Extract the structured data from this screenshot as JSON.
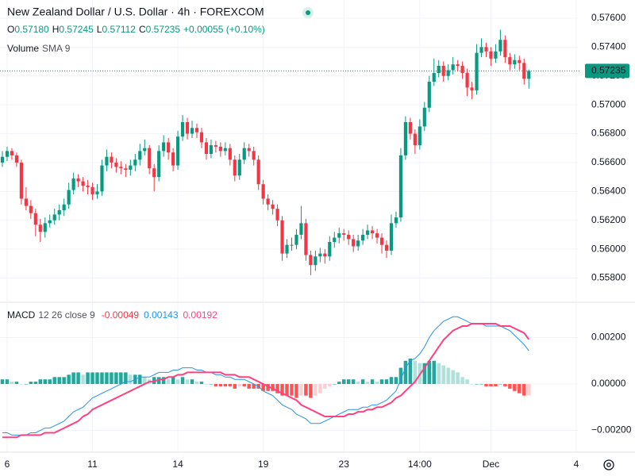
{
  "chart_data": [
    {
      "type": "candlestick",
      "title": "New Zealand Dollar / U.S. Dollar · 4h · FOREXCOM",
      "ohlc_legend": [
        {
          "key": "O",
          "value": "0.57180"
        },
        {
          "key": "H",
          "value": "0.57245"
        },
        {
          "key": "L",
          "value": "0.57112"
        },
        {
          "key": "C",
          "value": "0.57235"
        }
      ],
      "change": "+0.00055 (+0.10%)",
      "volume_legend": {
        "title": "Volume",
        "params": "SMA 9"
      },
      "up_color": "#089981",
      "down_color": "#f23645",
      "xlim": [
        -0.5,
        122
      ],
      "ylim": [
        0.55638,
        0.57726
      ],
      "yticks": [
        {
          "value": 0.558,
          "label": "0.55800"
        },
        {
          "value": 0.56,
          "label": "0.56000"
        },
        {
          "value": 0.562,
          "label": "0.56200"
        },
        {
          "value": 0.564,
          "label": "0.56400"
        },
        {
          "value": 0.566,
          "label": "0.56600"
        },
        {
          "value": 0.568,
          "label": "0.56800"
        },
        {
          "value": 0.57,
          "label": "0.57000"
        },
        {
          "value": 0.572,
          "label": "0.57200"
        },
        {
          "value": 0.574,
          "label": "0.57400"
        },
        {
          "value": 0.576,
          "label": "0.57600"
        }
      ],
      "grid": true,
      "candles": [
        [
          0.566,
          0.5668,
          0.5657,
          0.5664
        ],
        [
          0.5664,
          0.5671,
          0.5661,
          0.5668
        ],
        [
          0.5668,
          0.567,
          0.5662,
          0.5665
        ],
        [
          0.5665,
          0.5667,
          0.5657,
          0.566
        ],
        [
          0.566,
          0.5662,
          0.5631,
          0.5635
        ],
        [
          0.5635,
          0.5643,
          0.5627,
          0.563
        ],
        [
          0.563,
          0.5634,
          0.5621,
          0.5625
        ],
        [
          0.5625,
          0.5628,
          0.5609,
          0.5617
        ],
        [
          0.5617,
          0.5621,
          0.5605,
          0.5612
        ],
        [
          0.5612,
          0.5622,
          0.5608,
          0.5618
        ],
        [
          0.5618,
          0.5624,
          0.5615,
          0.562
        ],
        [
          0.562,
          0.5628,
          0.5617,
          0.5624
        ],
        [
          0.5624,
          0.5631,
          0.562,
          0.5627
        ],
        [
          0.5627,
          0.5635,
          0.5623,
          0.5631
        ],
        [
          0.5631,
          0.5646,
          0.5628,
          0.5641
        ],
        [
          0.5641,
          0.5653,
          0.5638,
          0.5649
        ],
        [
          0.5649,
          0.5652,
          0.5643,
          0.5647
        ],
        [
          0.5647,
          0.565,
          0.564,
          0.5644
        ],
        [
          0.5644,
          0.5648,
          0.5638,
          0.5643
        ],
        [
          0.5643,
          0.5646,
          0.5634,
          0.5638
        ],
        [
          0.5638,
          0.5645,
          0.5635,
          0.564
        ],
        [
          0.564,
          0.5662,
          0.5637,
          0.5658
        ],
        [
          0.5658,
          0.5669,
          0.5654,
          0.5664
        ],
        [
          0.5664,
          0.5667,
          0.5656,
          0.566
        ],
        [
          0.566,
          0.5663,
          0.5653,
          0.5657
        ],
        [
          0.5657,
          0.5661,
          0.5652,
          0.5656
        ],
        [
          0.5656,
          0.5659,
          0.565,
          0.5655
        ],
        [
          0.5655,
          0.5662,
          0.5651,
          0.5658
        ],
        [
          0.5658,
          0.5666,
          0.5654,
          0.5662
        ],
        [
          0.5662,
          0.5673,
          0.5658,
          0.5668
        ],
        [
          0.5668,
          0.5676,
          0.5665,
          0.567
        ],
        [
          0.567,
          0.5672,
          0.5652,
          0.5656
        ],
        [
          0.5656,
          0.5659,
          0.564,
          0.565
        ],
        [
          0.565,
          0.5672,
          0.5647,
          0.5668
        ],
        [
          0.5668,
          0.5679,
          0.5664,
          0.5674
        ],
        [
          0.5674,
          0.5677,
          0.5662,
          0.5667
        ],
        [
          0.5667,
          0.567,
          0.5654,
          0.5658
        ],
        [
          0.5658,
          0.5682,
          0.5655,
          0.5678
        ],
        [
          0.5678,
          0.5693,
          0.5675,
          0.5688
        ],
        [
          0.5688,
          0.5691,
          0.5676,
          0.568
        ],
        [
          0.568,
          0.5689,
          0.5677,
          0.5684
        ],
        [
          0.5684,
          0.5687,
          0.5677,
          0.5681
        ],
        [
          0.5681,
          0.5684,
          0.567,
          0.5674
        ],
        [
          0.5674,
          0.5677,
          0.5662,
          0.5666
        ],
        [
          0.5666,
          0.5676,
          0.5663,
          0.5672
        ],
        [
          0.5672,
          0.5675,
          0.5667,
          0.5671
        ],
        [
          0.5671,
          0.5674,
          0.5664,
          0.5668
        ],
        [
          0.5668,
          0.5674,
          0.5665,
          0.567
        ],
        [
          0.567,
          0.5673,
          0.5658,
          0.5662
        ],
        [
          0.5662,
          0.5665,
          0.5647,
          0.5651
        ],
        [
          0.5651,
          0.5666,
          0.5648,
          0.5662
        ],
        [
          0.5662,
          0.5674,
          0.5659,
          0.567
        ],
        [
          0.567,
          0.5673,
          0.5664,
          0.5668
        ],
        [
          0.5668,
          0.5671,
          0.5658,
          0.5662
        ],
        [
          0.5662,
          0.5665,
          0.5641,
          0.5645
        ],
        [
          0.5645,
          0.5648,
          0.5631,
          0.5635
        ],
        [
          0.5635,
          0.5638,
          0.5627,
          0.5631
        ],
        [
          0.5631,
          0.5634,
          0.5624,
          0.5628
        ],
        [
          0.5628,
          0.5631,
          0.5616,
          0.562
        ],
        [
          0.562,
          0.5623,
          0.5592,
          0.5597
        ],
        [
          0.5597,
          0.5607,
          0.5594,
          0.5603
        ],
        [
          0.5603,
          0.5608,
          0.5599,
          0.5603
        ],
        [
          0.5603,
          0.5614,
          0.56,
          0.561
        ],
        [
          0.561,
          0.563,
          0.5607,
          0.5618
        ],
        [
          0.5618,
          0.5621,
          0.5592,
          0.5596
        ],
        [
          0.5596,
          0.5599,
          0.5582,
          0.5589
        ],
        [
          0.5589,
          0.5599,
          0.5585,
          0.5595
        ],
        [
          0.5595,
          0.5601,
          0.5591,
          0.5597
        ],
        [
          0.5597,
          0.56,
          0.559,
          0.5595
        ],
        [
          0.5595,
          0.5609,
          0.5592,
          0.5605
        ],
        [
          0.5605,
          0.5612,
          0.5601,
          0.5608
        ],
        [
          0.5608,
          0.5615,
          0.5604,
          0.5611
        ],
        [
          0.5611,
          0.5614,
          0.5606,
          0.561
        ],
        [
          0.561,
          0.5613,
          0.5603,
          0.5607
        ],
        [
          0.5607,
          0.561,
          0.5598,
          0.5602
        ],
        [
          0.5602,
          0.561,
          0.5599,
          0.5606
        ],
        [
          0.5606,
          0.5614,
          0.5603,
          0.561
        ],
        [
          0.561,
          0.5617,
          0.5607,
          0.5613
        ],
        [
          0.5613,
          0.5616,
          0.5607,
          0.5611
        ],
        [
          0.5611,
          0.5614,
          0.5604,
          0.5608
        ],
        [
          0.5608,
          0.5611,
          0.5597,
          0.5603
        ],
        [
          0.5603,
          0.5606,
          0.5594,
          0.5599
        ],
        [
          0.5599,
          0.5624,
          0.5596,
          0.5618
        ],
        [
          0.5618,
          0.5626,
          0.5615,
          0.5622
        ],
        [
          0.5622,
          0.567,
          0.5619,
          0.5665
        ],
        [
          0.5665,
          0.5692,
          0.5662,
          0.5688
        ],
        [
          0.5688,
          0.5691,
          0.5676,
          0.568
        ],
        [
          0.568,
          0.5683,
          0.5666,
          0.5672
        ],
        [
          0.5672,
          0.569,
          0.5669,
          0.5685
        ],
        [
          0.5685,
          0.5702,
          0.5682,
          0.5698
        ],
        [
          0.5698,
          0.572,
          0.5695,
          0.5716
        ],
        [
          0.5716,
          0.5732,
          0.5713,
          0.5722
        ],
        [
          0.5722,
          0.5731,
          0.5719,
          0.5727
        ],
        [
          0.5727,
          0.573,
          0.5716,
          0.572
        ],
        [
          0.572,
          0.5728,
          0.5717,
          0.5724
        ],
        [
          0.5724,
          0.5733,
          0.5721,
          0.5728
        ],
        [
          0.5728,
          0.5731,
          0.5723,
          0.5727
        ],
        [
          0.5727,
          0.573,
          0.5718,
          0.5722
        ],
        [
          0.5722,
          0.5725,
          0.5706,
          0.5712
        ],
        [
          0.5712,
          0.5716,
          0.5704,
          0.571
        ],
        [
          0.571,
          0.5742,
          0.5707,
          0.5736
        ],
        [
          0.5736,
          0.5746,
          0.5733,
          0.574
        ],
        [
          0.574,
          0.5743,
          0.5733,
          0.5737
        ],
        [
          0.5737,
          0.574,
          0.5727,
          0.5732
        ],
        [
          0.5732,
          0.5742,
          0.5729,
          0.5737
        ],
        [
          0.5737,
          0.5752,
          0.5734,
          0.5745
        ],
        [
          0.5745,
          0.5748,
          0.5729,
          0.5733
        ],
        [
          0.5733,
          0.5736,
          0.5724,
          0.5728
        ],
        [
          0.5728,
          0.5735,
          0.5725,
          0.5731
        ],
        [
          0.5731,
          0.5734,
          0.5724,
          0.5729
        ],
        [
          0.5729,
          0.5732,
          0.5714,
          0.5718
        ],
        [
          0.5718,
          0.57245,
          0.57112,
          0.57235
        ]
      ],
      "last_price_color": "#089981"
    },
    {
      "type": "macd",
      "legend": {
        "title": "MACD",
        "params": "12 26 close 9"
      },
      "xlim": [
        -0.5,
        122
      ],
      "ylim": [
        -0.00294,
        0.00349
      ],
      "yticks": [
        {
          "value": -0.002,
          "label": "−0.00200"
        },
        {
          "value": 0,
          "label": "0.00000"
        },
        {
          "value": 0.002,
          "label": "0.00200"
        }
      ],
      "xticks": [
        {
          "value": 1,
          "label": "6"
        },
        {
          "value": 19,
          "label": "11"
        },
        {
          "value": 37,
          "label": "14"
        },
        {
          "value": 55,
          "label": "19"
        },
        {
          "value": 72,
          "label": "23"
        },
        {
          "value": 88,
          "label": "14:00"
        },
        {
          "value": 103,
          "label": "Dec"
        },
        {
          "value": 121,
          "label": "4"
        }
      ],
      "grid": true,
      "histogram_colors": {
        "up_rising": "#26a69a",
        "up_falling": "#b2dfdb",
        "down_falling": "#ff5252",
        "down_rising": "#ffcdd2"
      },
      "macd_color": "#2196f3",
      "signal_color": "#ff4081",
      "histogram_label_color": "#f23645",
      "histogram": [
        0.0002,
        0.0002,
        0.0001,
        0.0001,
        0.0,
        0.0,
        0.0001,
        0.0001,
        0.0002,
        0.0002,
        0.0002,
        0.0003,
        0.0003,
        0.0003,
        0.0004,
        0.0005,
        0.0005,
        0.0004,
        0.0005,
        0.0005,
        0.0005,
        0.0005,
        0.0005,
        0.0005,
        0.0005,
        0.0005,
        0.0005,
        0.0004,
        0.0004,
        0.0004,
        0.0003,
        0.0002,
        0.0003,
        0.0003,
        0.0003,
        0.0002,
        0.0003,
        0.0002,
        0.0003,
        0.0002,
        0.0002,
        0.0001,
        0.0001,
        0.0,
        0.0,
        -0.0001,
        -0.0001,
        -0.0001,
        -0.0001,
        -0.0002,
        -0.0001,
        -0.0001,
        -0.0002,
        -0.0002,
        -0.0002,
        -0.0003,
        -0.0003,
        -0.0003,
        -0.0004,
        -0.0005,
        -0.0005,
        -0.0005,
        -0.0006,
        -0.0005,
        -0.0005,
        -0.0006,
        -0.0005,
        -0.0004,
        -0.0002,
        -0.0001,
        0.0,
        0.0001,
        0.0002,
        0.0002,
        0.0002,
        0.0001,
        0.0002,
        0.0001,
        0.0002,
        0.0001,
        0.0002,
        0.0002,
        0.0003,
        0.0003,
        0.0007,
        0.001,
        0.0011,
        0.001,
        0.0009,
        0.0009,
        0.001,
        0.001,
        0.0009,
        0.0008,
        0.0007,
        0.0006,
        0.0005,
        0.0003,
        0.0002,
        0.0,
        0.0,
        0.0,
        -0.0001,
        -0.0001,
        -0.0001,
        0.0,
        -0.0001,
        -0.0002,
        -0.0003,
        -0.0004,
        -0.0005,
        -0.00049
      ],
      "macd": [
        -0.0021,
        -0.0021,
        -0.0022,
        -0.0022,
        -0.0022,
        -0.0022,
        -0.0021,
        -0.0021,
        -0.002,
        -0.0019,
        -0.0019,
        -0.0018,
        -0.0017,
        -0.0016,
        -0.0014,
        -0.0012,
        -0.0011,
        -0.001,
        -0.0008,
        -0.0006,
        -0.0005,
        -0.0004,
        -0.0003,
        -0.0002,
        -0.0001,
        0.0,
        0.0001,
        0.0001,
        0.0002,
        0.0003,
        0.0003,
        0.0003,
        0.0004,
        0.0005,
        0.0005,
        0.0005,
        0.0006,
        0.0006,
        0.0007,
        0.0007,
        0.0007,
        0.0006,
        0.0006,
        0.0005,
        0.0005,
        0.0004,
        0.0004,
        0.0003,
        0.0003,
        0.0002,
        0.0002,
        0.0002,
        0.0001,
        0.0,
        -0.0001,
        -0.0003,
        -0.0004,
        -0.0005,
        -0.0007,
        -0.0009,
        -0.001,
        -0.0011,
        -0.0013,
        -0.0014,
        -0.0015,
        -0.0017,
        -0.0017,
        -0.0017,
        -0.0016,
        -0.0015,
        -0.0014,
        -0.0013,
        -0.0012,
        -0.0011,
        -0.0011,
        -0.0011,
        -0.001,
        -0.001,
        -0.0009,
        -0.0009,
        -0.0008,
        -0.0007,
        -0.0005,
        -0.0003,
        0.0002,
        0.0007,
        0.001,
        0.0011,
        0.0013,
        0.0016,
        0.002,
        0.0023,
        0.0025,
        0.0027,
        0.0028,
        0.0029,
        0.0029,
        0.0028,
        0.0027,
        0.0026,
        0.0026,
        0.0026,
        0.0025,
        0.0025,
        0.0025,
        0.0025,
        0.0024,
        0.0023,
        0.0021,
        0.0019,
        0.0017,
        0.00143
      ],
      "signal": [
        -0.0023,
        -0.0023,
        -0.0023,
        -0.0023,
        -0.0022,
        -0.0022,
        -0.0022,
        -0.0022,
        -0.0022,
        -0.0021,
        -0.0021,
        -0.0021,
        -0.002,
        -0.0019,
        -0.0018,
        -0.0017,
        -0.0016,
        -0.0014,
        -0.0013,
        -0.0011,
        -0.001,
        -0.0009,
        -0.0008,
        -0.0007,
        -0.0006,
        -0.0005,
        -0.0004,
        -0.0003,
        -0.0002,
        -0.0001,
        0.0,
        0.0001,
        0.0001,
        0.0002,
        0.0002,
        0.0003,
        0.0003,
        0.0004,
        0.0004,
        0.0005,
        0.0005,
        0.0005,
        0.0005,
        0.0005,
        0.0005,
        0.0005,
        0.0005,
        0.0004,
        0.0004,
        0.0004,
        0.0003,
        0.0003,
        0.0003,
        0.0002,
        0.0001,
        0.0,
        -0.0001,
        -0.0002,
        -0.0003,
        -0.0004,
        -0.0005,
        -0.0006,
        -0.0007,
        -0.0009,
        -0.001,
        -0.0011,
        -0.0012,
        -0.0013,
        -0.0014,
        -0.0014,
        -0.0014,
        -0.0014,
        -0.0014,
        -0.0013,
        -0.0013,
        -0.0012,
        -0.0012,
        -0.0011,
        -0.0011,
        -0.001,
        -0.001,
        -0.0009,
        -0.0008,
        -0.0006,
        -0.0005,
        -0.0003,
        -0.0001,
        0.0001,
        0.0004,
        0.0007,
        0.001,
        0.0013,
        0.0016,
        0.0019,
        0.0021,
        0.0023,
        0.0024,
        0.0025,
        0.0025,
        0.0026,
        0.0026,
        0.0026,
        0.0026,
        0.0026,
        0.0026,
        0.0025,
        0.0025,
        0.0025,
        0.0024,
        0.0023,
        0.0022,
        0.00192
      ]
    }
  ]
}
